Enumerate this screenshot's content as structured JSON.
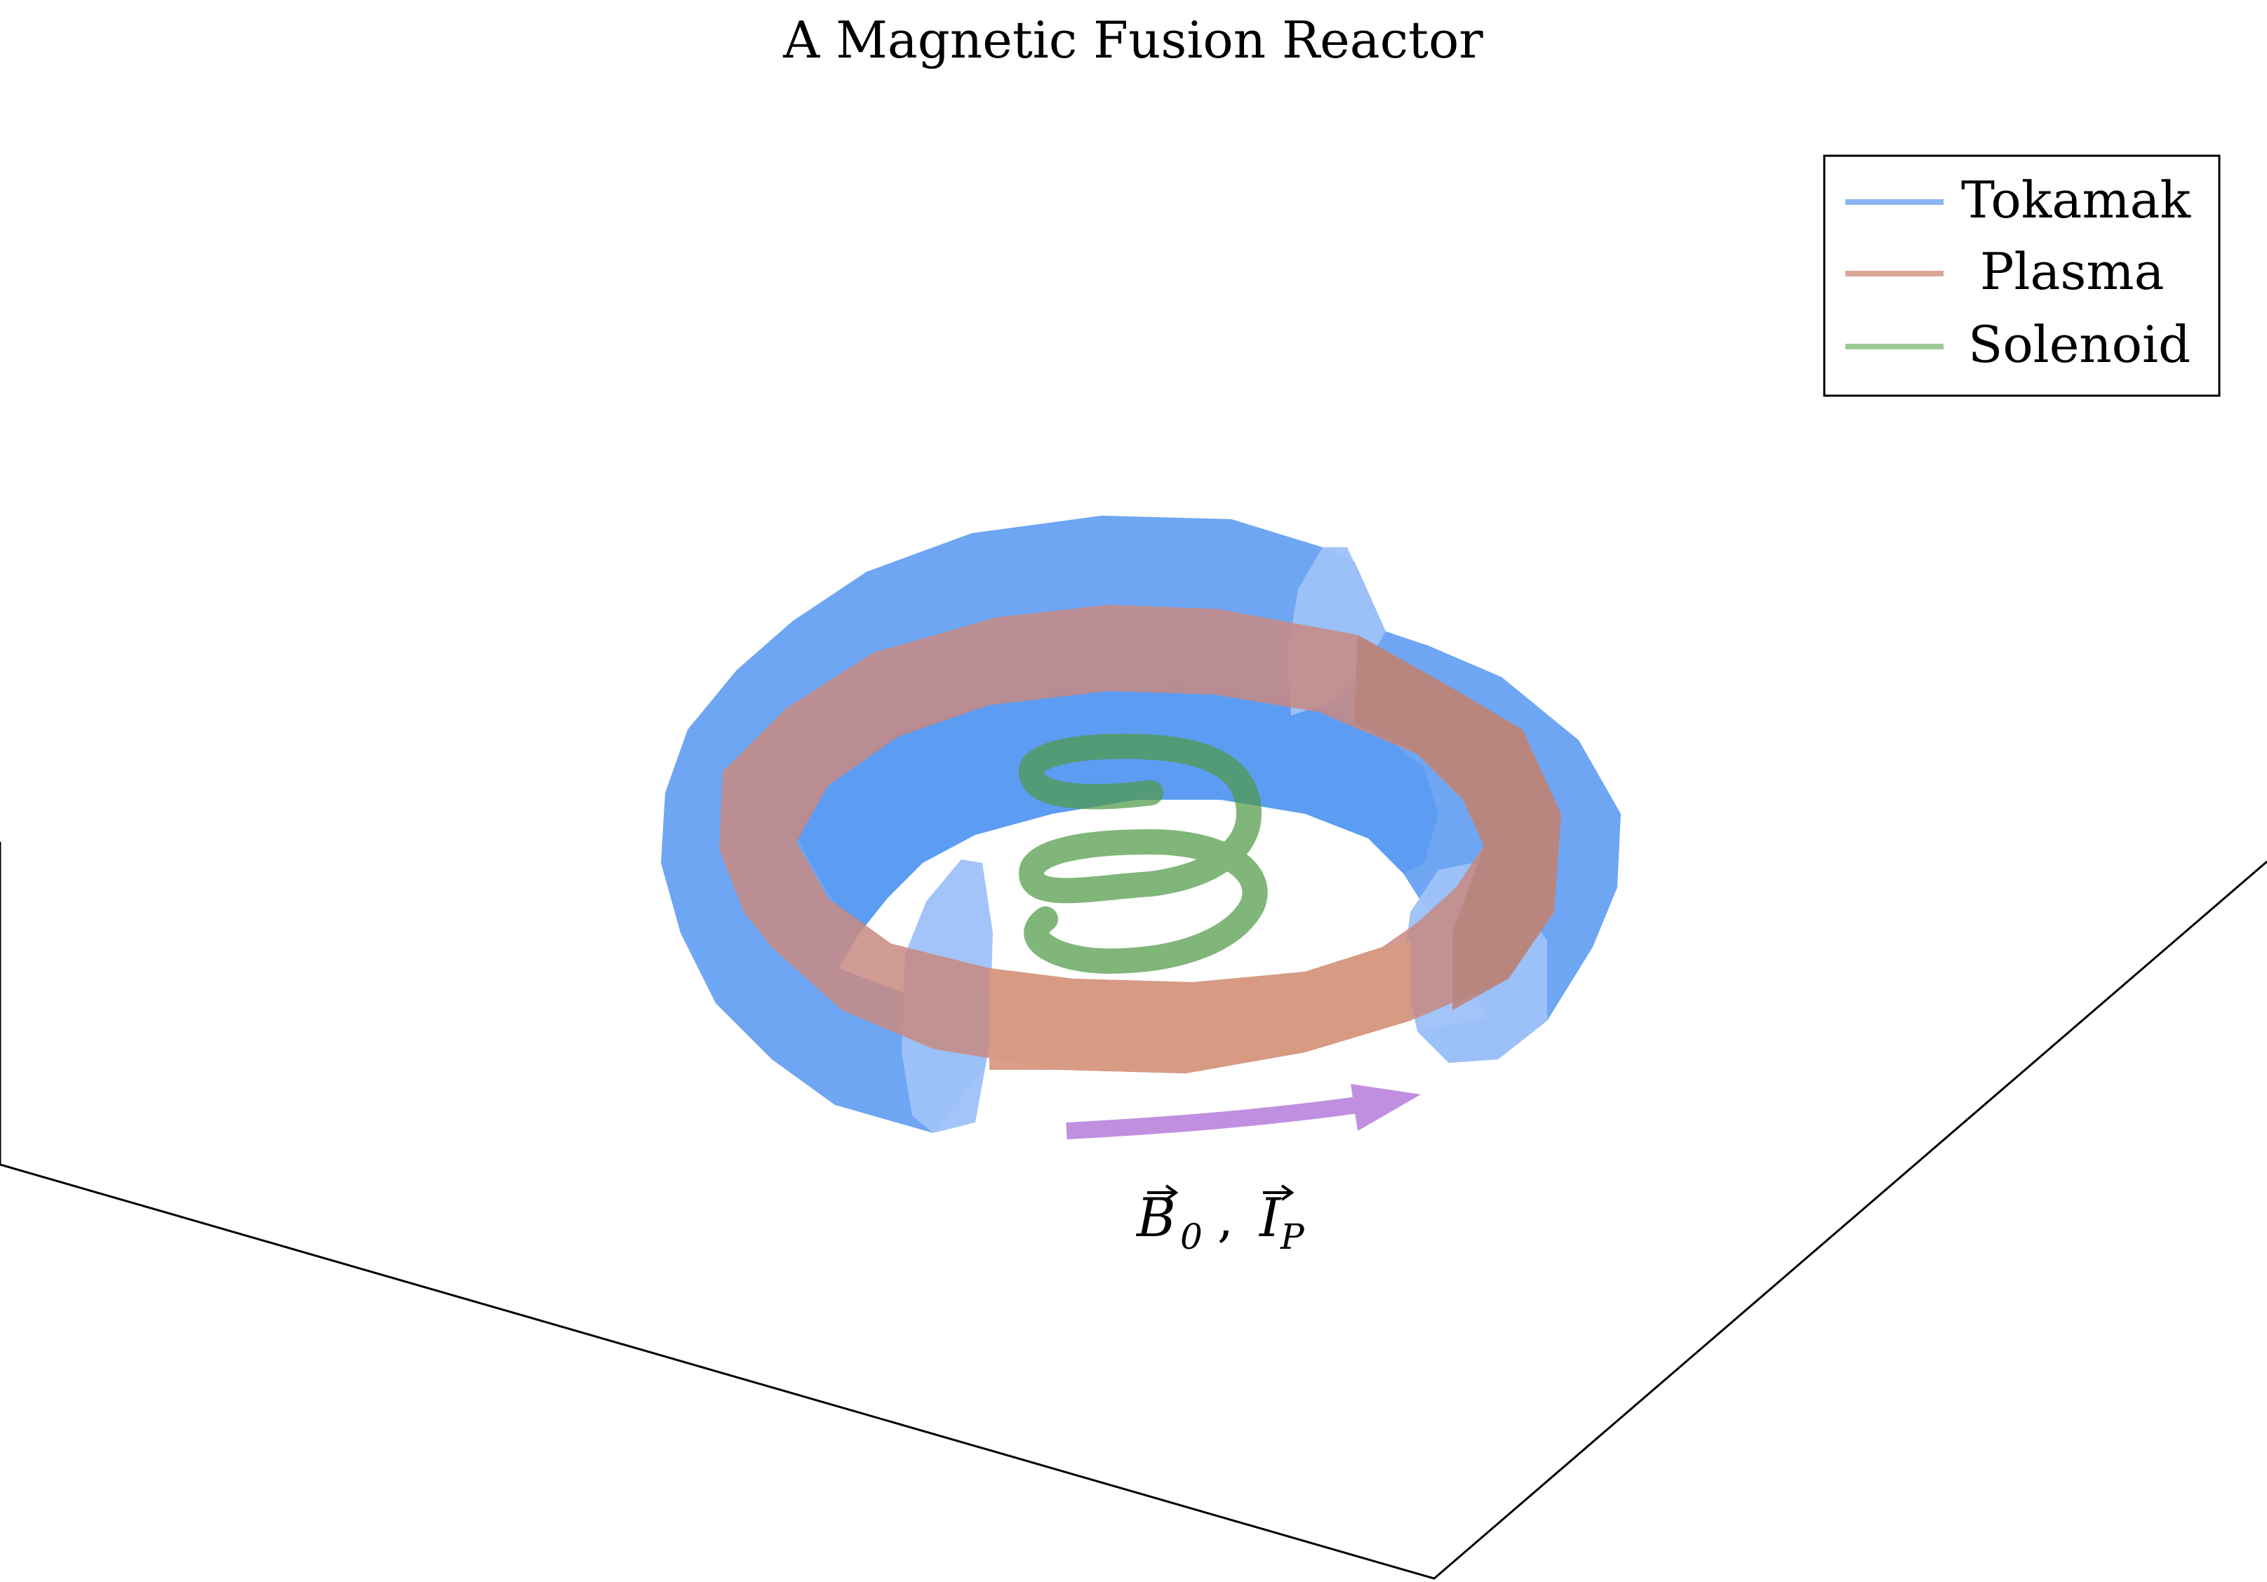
{
  "title": "A Magnetic Fusion Reactor",
  "legend": {
    "placement": "top-right",
    "entries": [
      {
        "label": "Tokamak",
        "color": "#6ca4f0"
      },
      {
        "label": "Plasma",
        "color": "#d39b82"
      },
      {
        "label": "Solenoid",
        "color": "#8fc487"
      }
    ]
  },
  "annotation": {
    "field_symbol": "B",
    "field_subscript": "0",
    "separator": ",",
    "current_symbol": "I",
    "current_subscript": "P",
    "arrow_color": "#c08fe0"
  },
  "colors": {
    "tokamak": "#5a9af2",
    "tokamak_cut": "#8fb8f7",
    "plasma": "#d39b82",
    "solenoid": "#4f9a45",
    "floor_line": "#000000"
  }
}
